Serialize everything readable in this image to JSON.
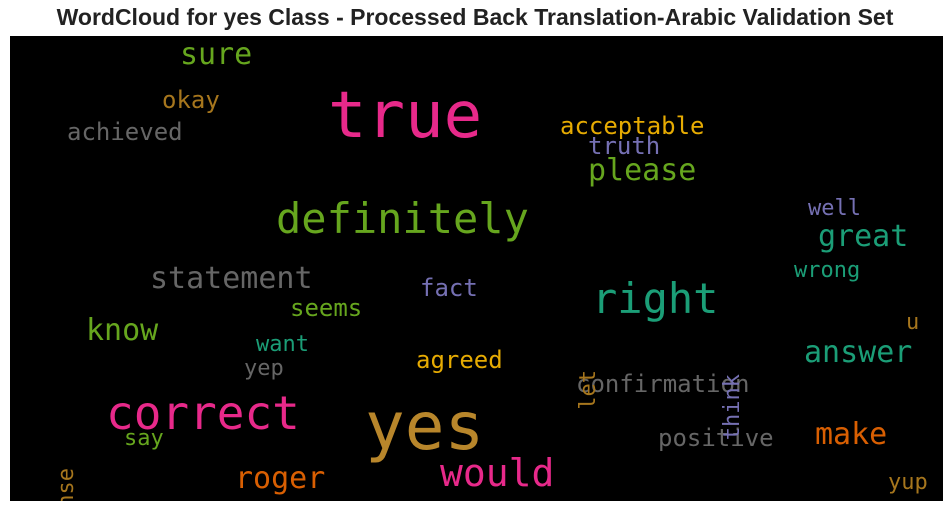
{
  "chart_data": {
    "type": "wordcloud",
    "title": "WordCloud for yes Class - Processed Back Translation-Arabic Validation Set",
    "background": "#000000",
    "words": [
      {
        "text": "yes",
        "color": "#b8862b"
      },
      {
        "text": "true",
        "color": "#e7298a"
      },
      {
        "text": "correct",
        "color": "#e7298a"
      },
      {
        "text": "definitely",
        "color": "#66a61e"
      },
      {
        "text": "right",
        "color": "#1b9e77"
      },
      {
        "text": "would",
        "color": "#e7298a"
      },
      {
        "text": "statement",
        "color": "#666666"
      },
      {
        "text": "please",
        "color": "#66a61e"
      },
      {
        "text": "great",
        "color": "#1b9e77"
      },
      {
        "text": "answer",
        "color": "#1b9e77"
      },
      {
        "text": "know",
        "color": "#66a61e"
      },
      {
        "text": "make",
        "color": "#d95f02"
      },
      {
        "text": "roger",
        "color": "#d95f02"
      },
      {
        "text": "sure",
        "color": "#66a61e"
      },
      {
        "text": "confirmation",
        "color": "#666666"
      },
      {
        "text": "positive",
        "color": "#666666"
      },
      {
        "text": "acceptable",
        "color": "#e6ab02"
      },
      {
        "text": "achieved",
        "color": "#666666"
      },
      {
        "text": "agreed",
        "color": "#e6ab02"
      },
      {
        "text": "truth",
        "color": "#7570b3"
      },
      {
        "text": "okay",
        "color": "#a6761d"
      },
      {
        "text": "seems",
        "color": "#66a61e"
      },
      {
        "text": "fact",
        "color": "#7570b3"
      },
      {
        "text": "wrong",
        "color": "#1b9e77"
      },
      {
        "text": "well",
        "color": "#7570b3"
      },
      {
        "text": "want",
        "color": "#1b9e77"
      },
      {
        "text": "yep",
        "color": "#666666"
      },
      {
        "text": "say",
        "color": "#66a61e"
      },
      {
        "text": "think",
        "color": "#7570b3"
      },
      {
        "text": "let",
        "color": "#a6761d"
      },
      {
        "text": "sense",
        "color": "#a6761d"
      },
      {
        "text": "u",
        "color": "#a6761d"
      },
      {
        "text": "yup",
        "color": "#a6761d"
      }
    ]
  }
}
